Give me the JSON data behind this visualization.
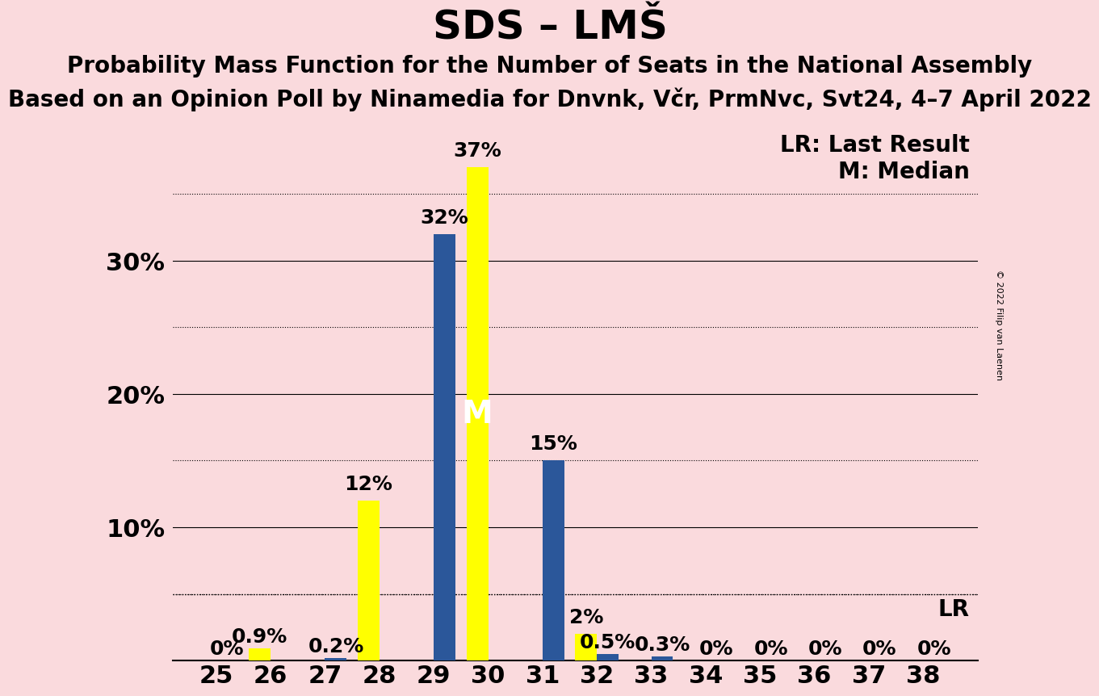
{
  "title": "SDS – LMŠ",
  "subtitle1": "Probability Mass Function for the Number of Seats in the National Assembly",
  "subtitle2": "Based on an Opinion Poll by Ninamedia for Dnvnk, Včr, PrmNvc, Svt24, 4–7 April 2022",
  "copyright": "© 2022 Filip van Laenen",
  "seats": [
    25,
    26,
    27,
    28,
    29,
    30,
    31,
    32,
    33,
    34,
    35,
    36,
    37,
    38
  ],
  "yellow_values": [
    0.0,
    0.9,
    0.0,
    12.0,
    0.0,
    37.0,
    0.0,
    2.0,
    0.0,
    0.0,
    0.0,
    0.0,
    0.0,
    0.0
  ],
  "blue_values": [
    0.0,
    0.0,
    0.2,
    0.0,
    32.0,
    0.0,
    15.0,
    0.5,
    0.3,
    0.0,
    0.0,
    0.0,
    0.0,
    0.0
  ],
  "yellow_labels": [
    "",
    "0.9%",
    "",
    "12%",
    "",
    "37%",
    "",
    "2%",
    "",
    "",
    "",
    "",
    "",
    ""
  ],
  "blue_labels": [
    "0%",
    "",
    "0.2%",
    "",
    "32%",
    "",
    "15%",
    "0.5%",
    "0.3%",
    "0%",
    "0%",
    "0%",
    "0%",
    "0%"
  ],
  "median_seat": 30,
  "lr_value": 5.0,
  "legend_lr": "LR: Last Result",
  "legend_m": "M: Median",
  "ylim": [
    0,
    40
  ],
  "yticks": [
    0,
    10,
    20,
    30
  ],
  "ytick_labels": [
    "",
    "10%",
    "20%",
    "30%"
  ],
  "solid_gridlines": [
    10,
    20,
    30
  ],
  "dotted_gridlines": [
    5,
    15,
    25,
    35
  ],
  "lr_gridline": 5.0,
  "background_color": "#fadadd",
  "yellow_color": "#ffff00",
  "blue_color": "#2b579a",
  "bar_width": 0.4,
  "title_fontsize": 36,
  "subtitle_fontsize": 20,
  "axis_fontsize": 22,
  "label_fontsize": 18,
  "legend_fontsize": 20,
  "lr_label": "LR"
}
